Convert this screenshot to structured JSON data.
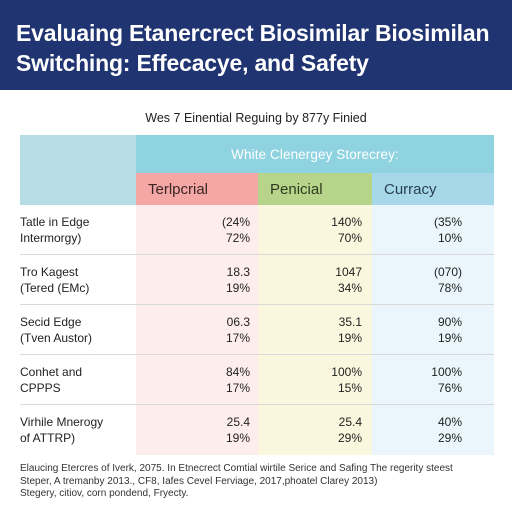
{
  "header": {
    "title_line1": "Evaluaing Etanercrect Biosimilar Biosimilan",
    "title_line2": "Switching: Effecacye, and Safety"
  },
  "subtitle": "Wes 7 Einential Reguing by 877y Finied",
  "table": {
    "group_header": "White Clenergey Storecrey:",
    "columns": [
      "Terlpcrial",
      "Penicial",
      "Curracy"
    ],
    "rows": [
      {
        "label_line1": "Tatle in Edge",
        "label_line2": "Intermorgy)",
        "values": [
          {
            "top": "(24%",
            "bottom": "72%"
          },
          {
            "top": "140%",
            "bottom": "70%"
          },
          {
            "top": "(35%",
            "bottom": "10%"
          }
        ]
      },
      {
        "label_line1": "Tro Kagest",
        "label_line2": "(Tered (EMc)",
        "values": [
          {
            "top": "18.3",
            "bottom": "19%"
          },
          {
            "top": "1047",
            "bottom": "34%"
          },
          {
            "top": "(070)",
            "bottom": "78%"
          }
        ]
      },
      {
        "label_line1": "Secid Edge",
        "label_line2": "(Tven Austor)",
        "values": [
          {
            "top": "06.3",
            "bottom": "17%"
          },
          {
            "top": "35.1",
            "bottom": "19%"
          },
          {
            "top": "90%",
            "bottom": "19%"
          }
        ]
      },
      {
        "label_line1": "Conhet and",
        "label_line2": "CPPPS",
        "values": [
          {
            "top": "84%",
            "bottom": "17%"
          },
          {
            "top": "100%",
            "bottom": "15%"
          },
          {
            "top": "100%",
            "bottom": "76%"
          }
        ]
      },
      {
        "label_line1": "Virhile Mnerogy",
        "label_line2": "of ATTRP)",
        "values": [
          {
            "top": "25.4",
            "bottom": "19%"
          },
          {
            "top": "25.4",
            "bottom": "29%"
          },
          {
            "top": "40%",
            "bottom": "29%"
          }
        ]
      }
    ]
  },
  "footer": {
    "line1": "Elaucing Etercres of Iverk, 2075. In Etnecrect Comtial wirtile Serice and Safing The regerity steest",
    "line2": "Steper, A tremanby 2013., CF8, Iafes Cevel Ferviage, 2017,phoatel Clarey 2013)",
    "line3": "Stegery, citiov, corn pondend, Fryecty."
  },
  "colors": {
    "banner": "#1f3470",
    "group_header": "#8fd3e0",
    "col1": "#f4a7a4",
    "col2": "#b6d48a",
    "col3": "#a6d8ea"
  }
}
